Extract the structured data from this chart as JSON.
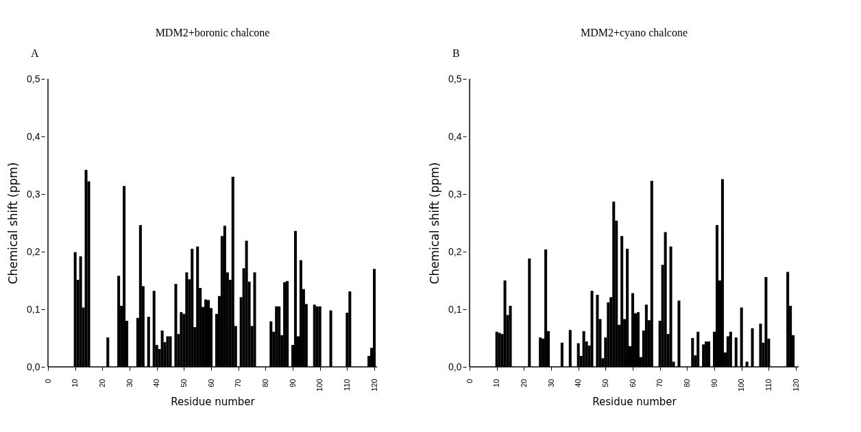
{
  "chart_data": [
    {
      "type": "bar",
      "title": "MDM2+boronic chalcone",
      "xlabel": "Residue number",
      "ylabel": "Chemical shift (ppm)",
      "annotations": [
        "A"
      ],
      "x": [
        10,
        11,
        12,
        13,
        14,
        15,
        22,
        26,
        27,
        28,
        29,
        33,
        34,
        35,
        37,
        39,
        40,
        41,
        42,
        43,
        44,
        45,
        47,
        48,
        49,
        50,
        51,
        52,
        53,
        54,
        55,
        56,
        57,
        58,
        59,
        60,
        62,
        63,
        64,
        65,
        66,
        67,
        68,
        69,
        71,
        72,
        73,
        74,
        75,
        76,
        82,
        83,
        84,
        85,
        86,
        87,
        88,
        90,
        91,
        92,
        93,
        94,
        95,
        98,
        99,
        100,
        104,
        110,
        111,
        118,
        119,
        120
      ],
      "values": [
        0.199,
        0.151,
        0.192,
        0.103,
        0.342,
        0.322,
        0.051,
        0.158,
        0.106,
        0.314,
        0.08,
        0.085,
        0.246,
        0.14,
        0.087,
        0.132,
        0.038,
        0.031,
        0.063,
        0.043,
        0.053,
        0.053,
        0.144,
        0.057,
        0.095,
        0.092,
        0.164,
        0.152,
        0.205,
        0.069,
        0.209,
        0.137,
        0.104,
        0.117,
        0.116,
        0.102,
        0.092,
        0.123,
        0.227,
        0.245,
        0.164,
        0.151,
        0.33,
        0.071,
        0.121,
        0.171,
        0.219,
        0.148,
        0.071,
        0.164,
        0.079,
        0.061,
        0.105,
        0.105,
        0.055,
        0.147,
        0.149,
        0.038,
        0.236,
        0.053,
        0.185,
        0.135,
        0.109,
        0.108,
        0.105,
        0.105,
        0.098,
        0.094,
        0.131,
        0.019,
        0.033,
        0.17
      ],
      "color": "#000000",
      "xlim": [
        0,
        121
      ],
      "xticks": [
        0,
        10,
        20,
        30,
        40,
        50,
        60,
        70,
        80,
        90,
        100,
        110,
        120
      ],
      "ylim": [
        0,
        0.5
      ],
      "yticks": [
        {
          "value": 0,
          "label": "0,0"
        },
        {
          "value": 0.1,
          "label": "0,1"
        },
        {
          "value": 0.2,
          "label": "0,2"
        },
        {
          "value": 0.3,
          "label": "0,3"
        },
        {
          "value": 0.4,
          "label": "0,4"
        },
        {
          "value": 0.5,
          "label": "0,5"
        }
      ],
      "grid": false
    },
    {
      "type": "bar",
      "title": "MDM2+cyano chalcone",
      "xlabel": "Residue number",
      "ylabel": "Chemical shift (ppm)",
      "annotations": [
        "B"
      ],
      "x": [
        10,
        11,
        12,
        13,
        14,
        15,
        22,
        26,
        27,
        28,
        29,
        34,
        37,
        40,
        41,
        42,
        43,
        44,
        45,
        47,
        48,
        49,
        50,
        51,
        52,
        53,
        54,
        55,
        56,
        57,
        58,
        59,
        60,
        61,
        62,
        63,
        64,
        65,
        66,
        67,
        70,
        71,
        72,
        73,
        74,
        75,
        77,
        82,
        83,
        84,
        86,
        87,
        88,
        90,
        91,
        92,
        93,
        94,
        95,
        96,
        98,
        100,
        102,
        104,
        107,
        108,
        109,
        110,
        117,
        118,
        119
      ],
      "values": [
        0.061,
        0.059,
        0.057,
        0.15,
        0.09,
        0.106,
        0.188,
        0.051,
        0.049,
        0.204,
        0.062,
        0.042,
        0.064,
        0.041,
        0.019,
        0.062,
        0.044,
        0.037,
        0.132,
        0.125,
        0.083,
        0.015,
        0.051,
        0.112,
        0.121,
        0.287,
        0.254,
        0.073,
        0.227,
        0.083,
        0.205,
        0.036,
        0.128,
        0.093,
        0.095,
        0.017,
        0.063,
        0.108,
        0.081,
        0.323,
        0.08,
        0.177,
        0.234,
        0.057,
        0.209,
        0.009,
        0.115,
        0.05,
        0.02,
        0.061,
        0.039,
        0.044,
        0.044,
        0.061,
        0.246,
        0.15,
        0.326,
        0.025,
        0.053,
        0.061,
        0.051,
        0.103,
        0.009,
        0.067,
        0.075,
        0.042,
        0.156,
        0.049,
        0.165,
        0.106,
        0.055
      ],
      "color": "#000000",
      "xlim": [
        0,
        121
      ],
      "xticks": [
        0,
        10,
        20,
        30,
        40,
        50,
        60,
        70,
        80,
        90,
        100,
        110,
        120
      ],
      "ylim": [
        0,
        0.5
      ],
      "yticks": [
        {
          "value": 0,
          "label": "0,0"
        },
        {
          "value": 0.1,
          "label": "0,1"
        },
        {
          "value": 0.2,
          "label": "0,2"
        },
        {
          "value": 0.3,
          "label": "0,3"
        },
        {
          "value": 0.4,
          "label": "0,4"
        },
        {
          "value": 0.5,
          "label": "0,5"
        }
      ],
      "grid": false
    }
  ]
}
